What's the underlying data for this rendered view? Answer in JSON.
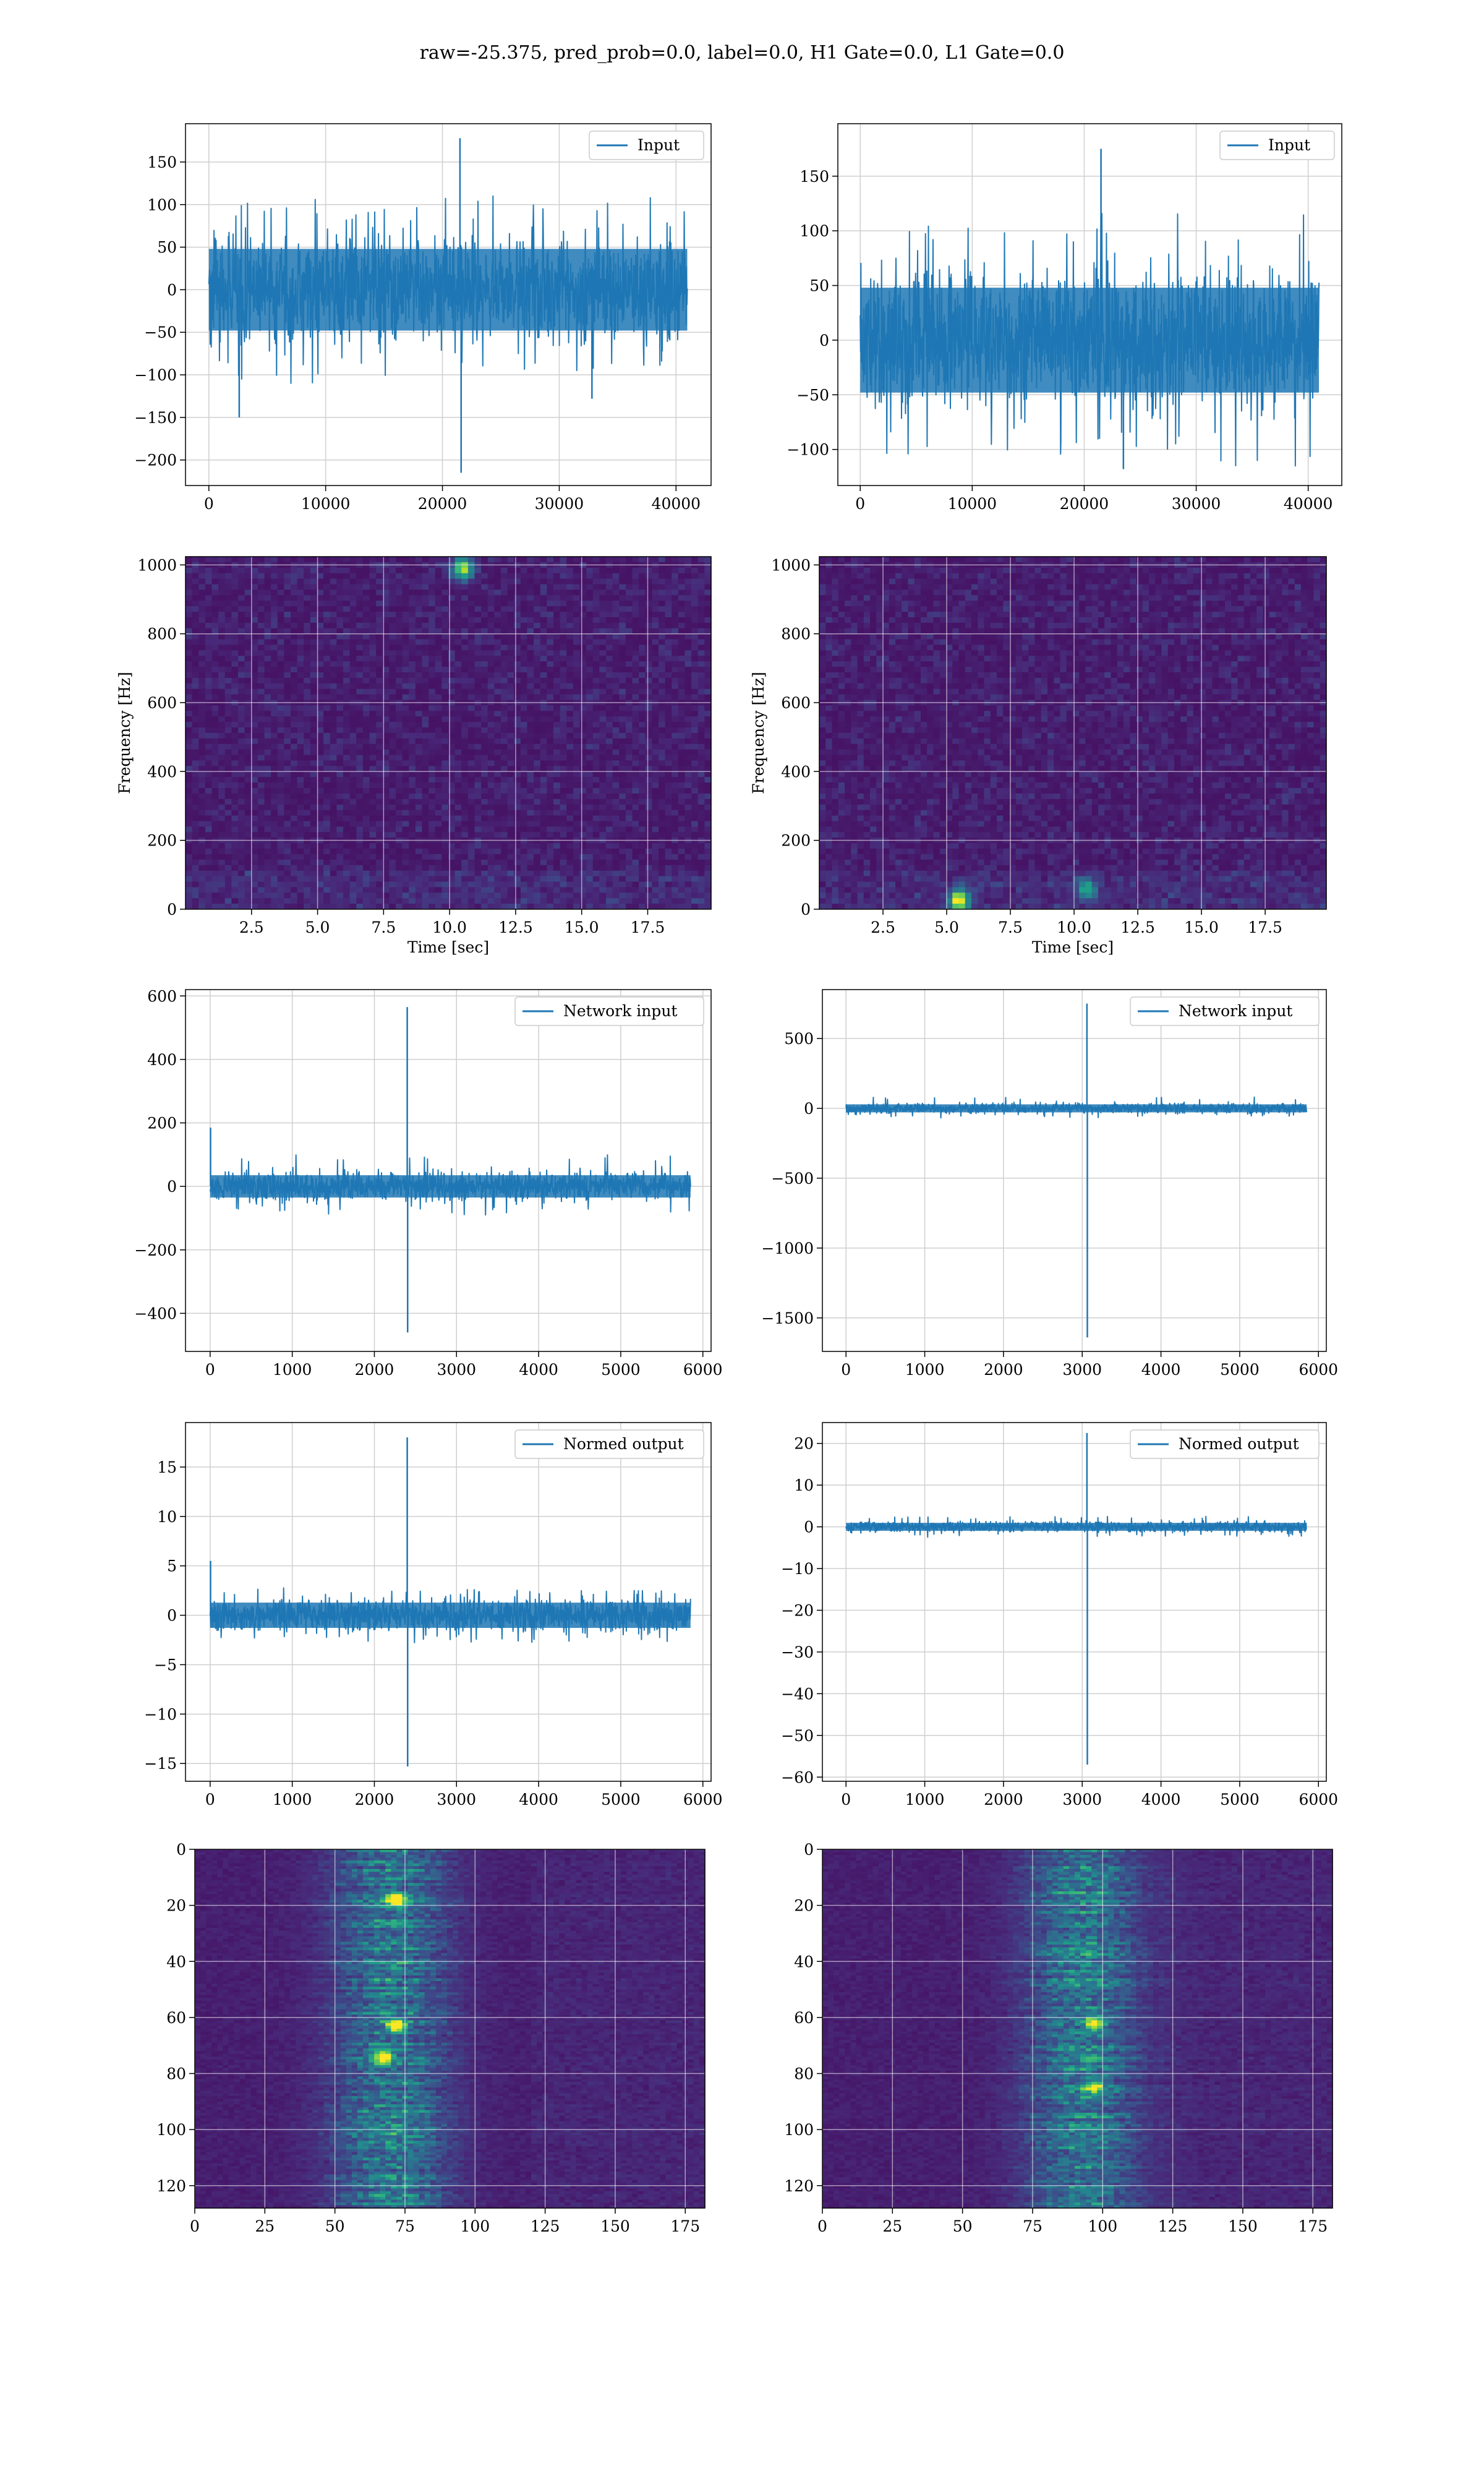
{
  "suptitle": "raw=-25.375, pred_prob=0.0, label=0.0, H1 Gate=0.0, L1 Gate=0.0",
  "colors": {
    "line": "#1f77b4",
    "grid": "#cfcfcf",
    "viridis_low": "#440154",
    "viridis_mid": "#21918c",
    "viridis_high": "#fde725"
  },
  "chart_data": [
    {
      "id": "h1-input",
      "type": "line",
      "legend": "Input",
      "legend_loc": "upper right",
      "grid": true,
      "xlim": [
        -2000,
        43000
      ],
      "ylim": [
        -230,
        195
      ],
      "xticks": [
        0,
        10000,
        20000,
        30000,
        40000
      ],
      "xtick_labels": [
        "0",
        "10000",
        "20000",
        "30000",
        "40000"
      ],
      "yticks": [
        -200,
        -150,
        -100,
        -50,
        0,
        50,
        100,
        150
      ],
      "ytick_labels": [
        "−200",
        "−150",
        "−100",
        "−50",
        "0",
        "50",
        "100",
        "150"
      ],
      "series": [
        {
          "x_range": [
            0,
            40960
          ],
          "noise": {
            "std": 30,
            "max_typical": 110,
            "min_typical": -110
          },
          "spikes": [
            {
              "x": 21500,
              "y": 178
            },
            {
              "x": 21600,
              "y": -215
            },
            {
              "x": 2600,
              "y": -150
            },
            {
              "x": 32800,
              "y": -128
            }
          ]
        }
      ]
    },
    {
      "id": "l1-input",
      "type": "line",
      "legend": "Input",
      "legend_loc": "upper right",
      "grid": true,
      "xlim": [
        -2000,
        43000
      ],
      "ylim": [
        -133,
        198
      ],
      "xticks": [
        0,
        10000,
        20000,
        30000,
        40000
      ],
      "xtick_labels": [
        "0",
        "10000",
        "20000",
        "30000",
        "40000"
      ],
      "yticks": [
        -100,
        -50,
        0,
        50,
        100,
        150
      ],
      "ytick_labels": [
        "−100",
        "−50",
        "0",
        "50",
        "100",
        "150"
      ],
      "series": [
        {
          "x_range": [
            0,
            40960
          ],
          "noise": {
            "std": 30,
            "max_typical": 120,
            "min_typical": -118
          },
          "spikes": [
            {
              "x": 21500,
              "y": 175
            },
            {
              "x": 23500,
              "y": -118
            }
          ]
        }
      ]
    },
    {
      "id": "h1-spectrogram",
      "type": "heatmap",
      "xlabel": "Time [sec]",
      "ylabel": "Frequency [Hz]",
      "xlim": [
        0,
        19.9
      ],
      "ylim": [
        0,
        1024
      ],
      "xticks": [
        2.5,
        5.0,
        7.5,
        10.0,
        12.5,
        15.0,
        17.5
      ],
      "xtick_labels": [
        "2.5",
        "5.0",
        "7.5",
        "10.0",
        "12.5",
        "15.0",
        "17.5"
      ],
      "yticks": [
        0,
        200,
        400,
        600,
        800,
        1000
      ],
      "ytick_labels": [
        "0",
        "200",
        "400",
        "600",
        "800",
        "1000"
      ],
      "hotspots": [
        {
          "x": 10.5,
          "y": 990,
          "level": 0.8
        }
      ]
    },
    {
      "id": "l1-spectrogram",
      "type": "heatmap",
      "xlabel": "Time [sec]",
      "ylabel": "Frequency [Hz]",
      "xlim": [
        0,
        19.9
      ],
      "ylim": [
        0,
        1024
      ],
      "xticks": [
        2.5,
        5.0,
        7.5,
        10.0,
        12.5,
        15.0,
        17.5
      ],
      "xtick_labels": [
        "2.5",
        "5.0",
        "7.5",
        "10.0",
        "12.5",
        "15.0",
        "17.5"
      ],
      "yticks": [
        0,
        200,
        400,
        600,
        800,
        1000
      ],
      "ytick_labels": [
        "0",
        "200",
        "400",
        "600",
        "800",
        "1000"
      ],
      "hotspots": [
        {
          "x": 5.5,
          "y": 25,
          "level": 0.9
        },
        {
          "x": 10.5,
          "y": 60,
          "level": 0.5
        }
      ]
    },
    {
      "id": "h1-network-input",
      "type": "line",
      "legend": "Network input",
      "legend_loc": "upper right",
      "grid": true,
      "xlim": [
        -300,
        6100
      ],
      "ylim": [
        -520,
        620
      ],
      "xticks": [
        0,
        1000,
        2000,
        3000,
        4000,
        5000,
        6000
      ],
      "xtick_labels": [
        "0",
        "1000",
        "2000",
        "3000",
        "4000",
        "5000",
        "6000"
      ],
      "yticks": [
        -400,
        -200,
        0,
        200,
        400,
        600
      ],
      "ytick_labels": [
        "−400",
        "−200",
        "0",
        "200",
        "400",
        "600"
      ],
      "series": [
        {
          "x_range": [
            0,
            5850
          ],
          "noise": {
            "std": 22,
            "max_typical": 100,
            "min_typical": -90
          },
          "spikes": [
            {
              "x": 2400,
              "y": 565
            },
            {
              "x": 2405,
              "y": -460
            },
            {
              "x": 5,
              "y": 185
            }
          ]
        }
      ]
    },
    {
      "id": "l1-network-input",
      "type": "line",
      "legend": "Network input",
      "legend_loc": "upper right",
      "grid": true,
      "xlim": [
        -300,
        6100
      ],
      "ylim": [
        -1740,
        850
      ],
      "xticks": [
        0,
        1000,
        2000,
        3000,
        4000,
        5000,
        6000
      ],
      "xtick_labels": [
        "0",
        "1000",
        "2000",
        "3000",
        "4000",
        "5000",
        "6000"
      ],
      "yticks": [
        -1500,
        -1000,
        -500,
        0,
        500
      ],
      "ytick_labels": [
        "−1500",
        "−1000",
        "−500",
        "0",
        "500"
      ],
      "series": [
        {
          "x_range": [
            0,
            5850
          ],
          "noise": {
            "std": 18,
            "max_typical": 80,
            "min_typical": -70
          },
          "spikes": [
            {
              "x": 3060,
              "y": 750
            },
            {
              "x": 3065,
              "y": -1640
            }
          ]
        }
      ]
    },
    {
      "id": "h1-normed-output",
      "type": "line",
      "legend": "Normed output",
      "legend_loc": "upper right",
      "grid": true,
      "xlim": [
        -300,
        6100
      ],
      "ylim": [
        -16.8,
        19.5
      ],
      "xticks": [
        0,
        1000,
        2000,
        3000,
        4000,
        5000,
        6000
      ],
      "xtick_labels": [
        "0",
        "1000",
        "2000",
        "3000",
        "4000",
        "5000",
        "6000"
      ],
      "yticks": [
        -15,
        -10,
        -5,
        0,
        5,
        10,
        15
      ],
      "ytick_labels": [
        "−15",
        "−10",
        "−5",
        "0",
        "5",
        "10",
        "15"
      ],
      "series": [
        {
          "x_range": [
            0,
            5850
          ],
          "noise": {
            "std": 0.8,
            "max_typical": 2.8,
            "min_typical": -2.8
          },
          "spikes": [
            {
              "x": 2400,
              "y": 18
            },
            {
              "x": 2405,
              "y": -15.3
            },
            {
              "x": 5,
              "y": 5.5
            }
          ]
        }
      ]
    },
    {
      "id": "l1-normed-output",
      "type": "line",
      "legend": "Normed output",
      "legend_loc": "upper right",
      "grid": true,
      "xlim": [
        -300,
        6100
      ],
      "ylim": [
        -61,
        25
      ],
      "xticks": [
        0,
        1000,
        2000,
        3000,
        4000,
        5000,
        6000
      ],
      "xtick_labels": [
        "0",
        "1000",
        "2000",
        "3000",
        "4000",
        "5000",
        "6000"
      ],
      "yticks": [
        -60,
        -50,
        -40,
        -30,
        -20,
        -10,
        0,
        10,
        20
      ],
      "ytick_labels": [
        "−60",
        "−50",
        "−40",
        "−30",
        "−20",
        "−10",
        "0",
        "10",
        "20"
      ],
      "series": [
        {
          "x_range": [
            0,
            5850
          ],
          "noise": {
            "std": 0.6,
            "max_typical": 2.5,
            "min_typical": -2.5
          },
          "spikes": [
            {
              "x": 3060,
              "y": 22.5
            },
            {
              "x": 3065,
              "y": -57
            }
          ]
        }
      ]
    },
    {
      "id": "h1-feature-map",
      "type": "heatmap",
      "xlim": [
        0,
        182
      ],
      "ylim": [
        128,
        0
      ],
      "xticks": [
        0,
        25,
        50,
        75,
        100,
        125,
        150,
        175
      ],
      "xtick_labels": [
        "0",
        "25",
        "50",
        "75",
        "100",
        "125",
        "150",
        "175"
      ],
      "yticks": [
        0,
        20,
        40,
        60,
        80,
        100,
        120
      ],
      "ytick_labels": [
        "0",
        "20",
        "40",
        "60",
        "80",
        "100",
        "120"
      ],
      "band_center": 70,
      "hotspots": [
        {
          "x": 72,
          "y": 18,
          "level": 0.9
        },
        {
          "x": 72,
          "y": 63,
          "level": 1.0
        },
        {
          "x": 67,
          "y": 74,
          "level": 0.9
        }
      ]
    },
    {
      "id": "l1-feature-map",
      "type": "heatmap",
      "xlim": [
        0,
        182
      ],
      "ylim": [
        128,
        0
      ],
      "xticks": [
        0,
        25,
        50,
        75,
        100,
        125,
        150,
        175
      ],
      "xtick_labels": [
        "0",
        "25",
        "50",
        "75",
        "100",
        "125",
        "150",
        "175"
      ],
      "yticks": [
        0,
        20,
        40,
        60,
        80,
        100,
        120
      ],
      "ytick_labels": [
        "0",
        "20",
        "40",
        "60",
        "80",
        "100",
        "120"
      ],
      "band_center": 93,
      "hotspots": [
        {
          "x": 97,
          "y": 62,
          "level": 0.8
        },
        {
          "x": 97,
          "y": 85,
          "level": 0.7
        }
      ]
    }
  ]
}
